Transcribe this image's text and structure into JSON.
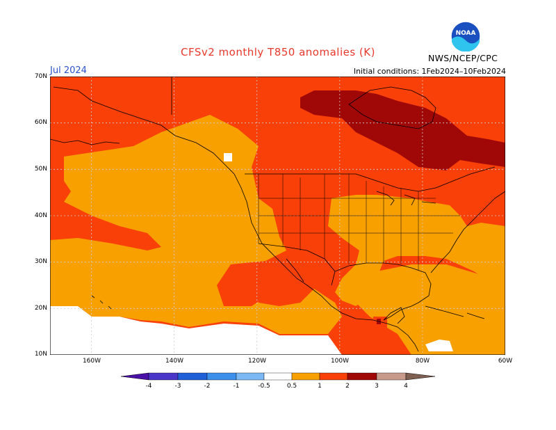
{
  "header": {
    "title": "CFSv2 monthly T850 anomalies (K)",
    "valid_month": "Jul 2024",
    "initial_conditions": "Initial conditions: 1Feb2024–10Feb2024",
    "agency": "NWS/NCEP/CPC",
    "logo_text": "NOAA"
  },
  "map": {
    "lat_labels": [
      "70N",
      "60N",
      "50N",
      "40N",
      "30N",
      "20N",
      "10N"
    ],
    "lon_labels": [
      "160W",
      "140W",
      "120W",
      "100W",
      "80W",
      "60W"
    ],
    "domain": {
      "lon_min": -170,
      "lon_max": -60,
      "lat_min": 10,
      "lat_max": 70
    }
  },
  "legend": {
    "labels": [
      "-4",
      "-3",
      "-2",
      "-1",
      "-0.5",
      "0.5",
      "1",
      "2",
      "3",
      "4"
    ],
    "colors": {
      "below_-4": "#4a10a8",
      "-4_-3": "#4a36c8",
      "-3_-2": "#2060d8",
      "-2_-1": "#3c90ec",
      "-1_-0.5": "#7cb8f4",
      "-0.5_0.5": "#ffffff",
      "0.5_1": "#f8a000",
      "1_2": "#f84008",
      "2_3": "#a00808",
      "3_4": "#c89a8c",
      "above_4": "#806050"
    }
  }
}
